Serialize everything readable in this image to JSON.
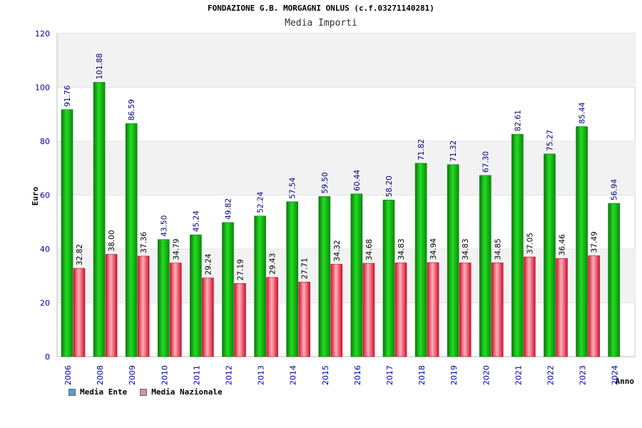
{
  "chart_data": {
    "type": "bar",
    "title": "FONDAZIONE G.B. MORGAGNI ONLUS (c.f.03271140281)",
    "subtitle": "Media Importi",
    "xlabel": "Anno",
    "ylabel": "Euro",
    "ylim": [
      0,
      120
    ],
    "yticks": [
      "0",
      "20",
      "40",
      "60",
      "80",
      "100",
      "120"
    ],
    "categories": [
      "2006",
      "2008",
      "2009",
      "2010",
      "2011",
      "2012",
      "2013",
      "2014",
      "2015",
      "2016",
      "2017",
      "2018",
      "2019",
      "2020",
      "2021",
      "2022",
      "2023",
      "2024"
    ],
    "series": [
      {
        "name": "Media Ente",
        "color": "#0fb30f",
        "values": [
          91.76,
          101.88,
          86.59,
          43.5,
          45.24,
          49.82,
          52.24,
          57.54,
          59.5,
          60.44,
          58.2,
          71.82,
          71.32,
          67.3,
          82.61,
          75.27,
          85.44,
          56.94
        ],
        "labels": [
          "91.76",
          "101.88",
          "86.59",
          "43.50",
          "45.24",
          "49.82",
          "52.24",
          "57.54",
          "59.50",
          "60.44",
          "58.20",
          "71.82",
          "71.32",
          "67.30",
          "82.61",
          "75.27",
          "85.44",
          "56.94"
        ]
      },
      {
        "name": "Media Nazionale",
        "color": "#e8203a",
        "values": [
          32.82,
          38.0,
          37.36,
          34.79,
          29.24,
          27.19,
          29.43,
          27.71,
          34.32,
          34.68,
          34.83,
          34.94,
          34.83,
          34.85,
          37.05,
          36.46,
          37.49,
          null
        ],
        "labels": [
          "32.82",
          "38.00",
          "37.36",
          "34.79",
          "29.24",
          "27.19",
          "29.43",
          "27.71",
          "34.32",
          "34.68",
          "34.83",
          "34.94",
          "34.83",
          "34.85",
          "37.05",
          "36.46",
          "37.49",
          ""
        ]
      }
    ],
    "legend_position": "bottom-left",
    "grid": true
  },
  "legend": {
    "items": [
      {
        "label": "Media Ente",
        "color": "#5b9bd5"
      },
      {
        "label": "Media Nazionale",
        "color": "#d98bb5"
      }
    ]
  }
}
